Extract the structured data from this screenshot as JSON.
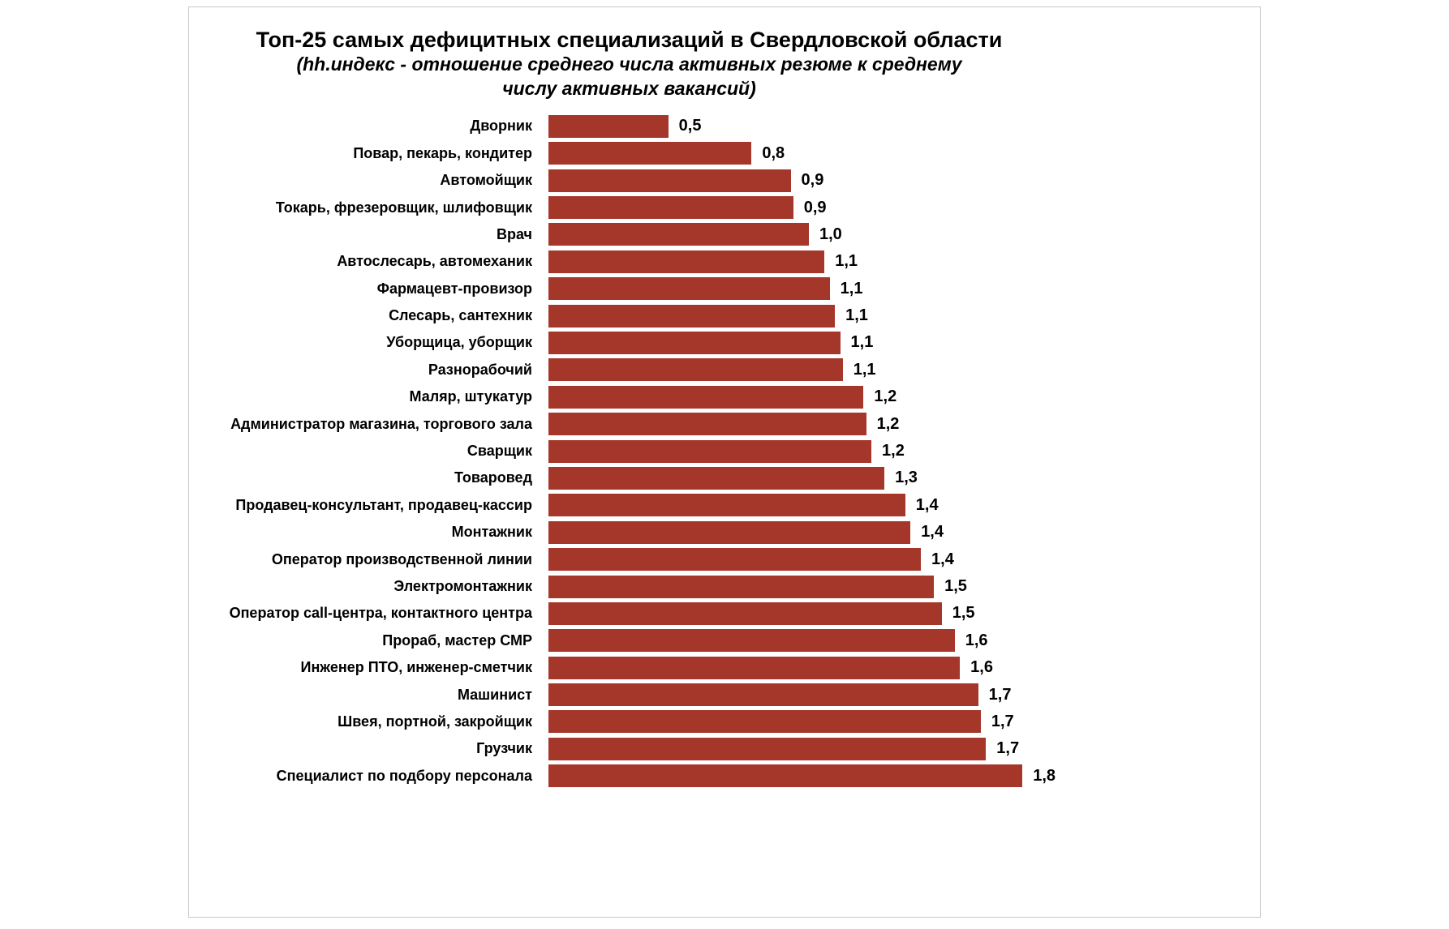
{
  "chart_data": {
    "type": "bar",
    "orientation": "horizontal",
    "title": "Топ-25 самых дефицитных специализаций в Свердловской области",
    "subtitle": "(hh.индекс - отношение среднего числа активных резюме к среднему числу активных вакансий)",
    "subtitle_lines": [
      "(hh.индекс - отношение среднего числа активных резюме к среднему",
      "числу активных вакансий)"
    ],
    "categories": [
      "Дворник",
      "Повар, пекарь, кондитер",
      "Автомойщик",
      "Токарь, фрезеровщик, шлифовщик",
      "Врач",
      "Автослесарь, автомеханик",
      "Фармацевт-провизор",
      "Слесарь, сантехник",
      "Уборщица, уборщик",
      "Разнорабочий",
      "Маляр, штукатур",
      "Администратор магазина, торгового зала",
      "Сварщик",
      "Товаровед",
      "Продавец-консультант, продавец-кассир",
      "Монтажник",
      "Оператор производственной линии",
      "Электромонтажник",
      "Оператор call-центра, контактного центра",
      "Прораб, мастер СМР",
      "Инженер ПТО, инженер-сметчик",
      "Машинист",
      "Швея, портной, закройщик",
      "Грузчик",
      "Специалист по подбору персонала"
    ],
    "values": [
      0.5,
      0.8,
      0.9,
      0.9,
      1.0,
      1.1,
      1.1,
      1.1,
      1.1,
      1.1,
      1.2,
      1.2,
      1.2,
      1.3,
      1.4,
      1.4,
      1.4,
      1.5,
      1.5,
      1.6,
      1.6,
      1.7,
      1.7,
      1.7,
      1.8
    ],
    "value_labels": [
      "0,5",
      "0,8",
      "0,9",
      "0,9",
      "1,0",
      "1,1",
      "1,1",
      "1,1",
      "1,1",
      "1,1",
      "1,2",
      "1,2",
      "1,2",
      "1,3",
      "1,4",
      "1,4",
      "1,4",
      "1,5",
      "1,5",
      "1,6",
      "1,6",
      "1,7",
      "1,7",
      "1,7",
      "1,8"
    ],
    "values_unrounded_est": [
      0.46,
      0.78,
      0.93,
      0.94,
      1.0,
      1.06,
      1.08,
      1.1,
      1.12,
      1.13,
      1.21,
      1.22,
      1.24,
      1.29,
      1.37,
      1.39,
      1.43,
      1.48,
      1.51,
      1.56,
      1.58,
      1.65,
      1.66,
      1.68,
      1.82
    ],
    "xlabel": "",
    "ylabel": "",
    "xlim": [
      0,
      2.0
    ],
    "grid": false,
    "legend": false,
    "bar_color": "#A4362A",
    "text_color": "#000000",
    "background_color": "#FFFFFF",
    "border_color": "#C8C8C8"
  }
}
